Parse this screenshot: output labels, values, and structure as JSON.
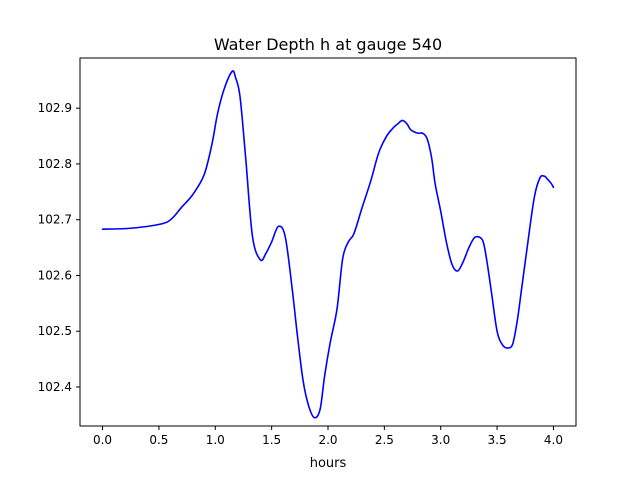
{
  "chart_data": {
    "type": "line",
    "title": "Water Depth h at gauge 540",
    "xlabel": "hours",
    "ylabel": "",
    "xlim": [
      -0.2,
      4.2
    ],
    "ylim": [
      102.33,
      102.99
    ],
    "xticks": [
      0.0,
      0.5,
      1.0,
      1.5,
      2.0,
      2.5,
      3.0,
      3.5,
      4.0
    ],
    "xtick_labels": [
      "0.0",
      "0.5",
      "1.0",
      "1.5",
      "2.0",
      "2.5",
      "3.0",
      "3.5",
      "4.0"
    ],
    "yticks": [
      102.4,
      102.5,
      102.6,
      102.7,
      102.8,
      102.9
    ],
    "ytick_labels": [
      "102.4",
      "102.5",
      "102.6",
      "102.7",
      "102.8",
      "102.9"
    ],
    "grid": false,
    "legend": "none",
    "line_color": "#0000ff",
    "series": [
      {
        "x": [
          0.0,
          0.2,
          0.4,
          0.55,
          0.62,
          0.7,
          0.8,
          0.9,
          0.97,
          1.02,
          1.08,
          1.15,
          1.18,
          1.22,
          1.27,
          1.33,
          1.4,
          1.45,
          1.5,
          1.56,
          1.62,
          1.68,
          1.73,
          1.78,
          1.83,
          1.88,
          1.93,
          1.97,
          2.02,
          2.08,
          2.13,
          2.18,
          2.23,
          2.3,
          2.38,
          2.45,
          2.52,
          2.58,
          2.62,
          2.66,
          2.7,
          2.73,
          2.76,
          2.8,
          2.84,
          2.88,
          2.92,
          2.95,
          3.0,
          3.05,
          3.1,
          3.15,
          3.2,
          3.25,
          3.3,
          3.35,
          3.38,
          3.41,
          3.45,
          3.5,
          3.55,
          3.6,
          3.64,
          3.68,
          3.72,
          3.77,
          3.83,
          3.88,
          3.92,
          3.95,
          3.98,
          4.0
        ],
        "y": [
          102.683,
          102.684,
          102.688,
          102.694,
          102.703,
          102.722,
          102.745,
          102.78,
          102.835,
          102.89,
          102.935,
          102.966,
          102.955,
          102.92,
          102.81,
          102.67,
          102.628,
          102.64,
          102.66,
          102.688,
          102.67,
          102.58,
          102.49,
          102.41,
          102.365,
          102.345,
          102.36,
          102.42,
          102.48,
          102.54,
          102.63,
          102.66,
          102.675,
          102.72,
          102.77,
          102.82,
          102.85,
          102.865,
          102.872,
          102.878,
          102.872,
          102.862,
          102.858,
          102.855,
          102.855,
          102.845,
          102.81,
          102.765,
          102.715,
          102.66,
          102.62,
          102.608,
          102.625,
          102.65,
          102.668,
          102.668,
          102.658,
          102.625,
          102.57,
          102.5,
          102.475,
          102.47,
          102.478,
          102.52,
          102.58,
          102.655,
          102.74,
          102.775,
          102.778,
          102.772,
          102.765,
          102.758
        ]
      }
    ]
  }
}
